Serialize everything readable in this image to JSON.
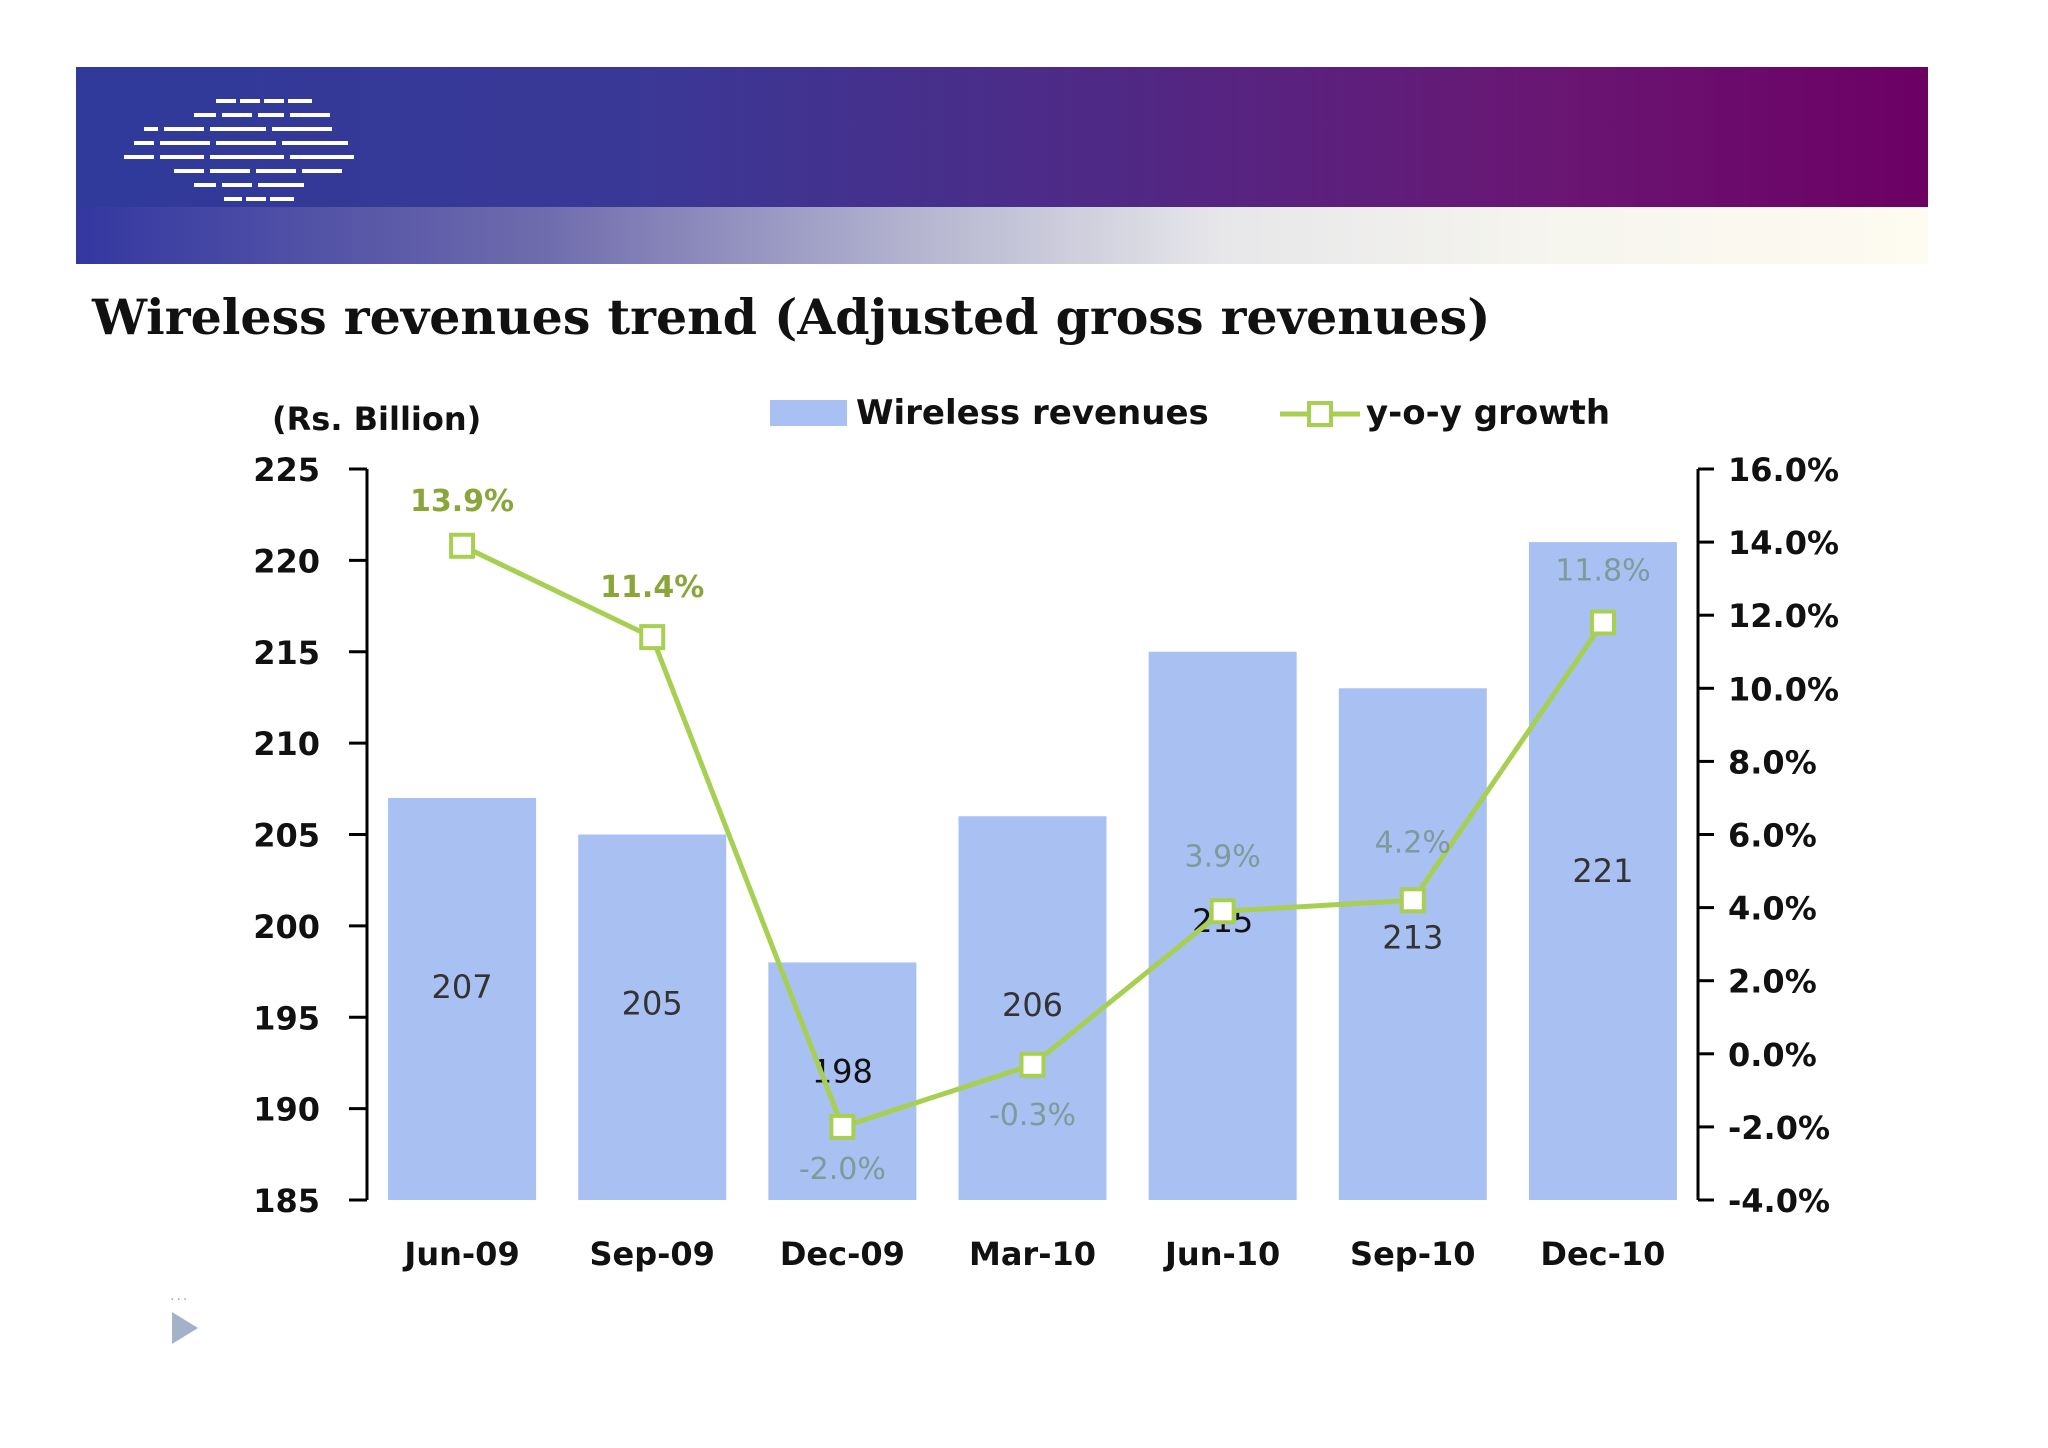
{
  "slide": {
    "title": "Wireless revenues trend (Adjusted gross revenues)",
    "logo_icon": "striped-company-logo-icon",
    "bullet_icon": "triangle-bullet-icon"
  },
  "colors": {
    "bar": "#a9c0f2",
    "line": "#a7cf52",
    "line_label": "#8aa53a",
    "axis": "#000000"
  },
  "chart_data": {
    "type": "bar",
    "title": "",
    "unit_label": "(Rs. Billion)",
    "categories": [
      "Jun-09",
      "Sep-09",
      "Dec-09",
      "Mar-10",
      "Jun-10",
      "Sep-10",
      "Dec-10"
    ],
    "series": [
      {
        "name": "Wireless revenues",
        "type": "bar",
        "axis": "left",
        "values": [
          207,
          205,
          198,
          206,
          215,
          213,
          221
        ],
        "labels": [
          "207",
          "205",
          "198",
          "206",
          "215",
          "213",
          "221"
        ]
      },
      {
        "name": "y-o-y growth",
        "type": "line",
        "axis": "right",
        "values": [
          13.9,
          11.4,
          -2.0,
          -0.3,
          3.9,
          4.2,
          11.8
        ],
        "labels": [
          "13.9%",
          "11.4%",
          "-2.0%",
          "-0.3%",
          "3.9%",
          "4.2%",
          "11.8%"
        ]
      }
    ],
    "y_left": {
      "min": 185,
      "max": 225,
      "ticks": [
        "185",
        "190",
        "195",
        "200",
        "205",
        "210",
        "215",
        "220",
        "225"
      ]
    },
    "y_right": {
      "min": -4,
      "max": 16,
      "ticks": [
        "-4.0%",
        "-2.0%",
        "0.0%",
        "2.0%",
        "4.0%",
        "6.0%",
        "8.0%",
        "10.0%",
        "12.0%",
        "14.0%",
        "16.0%"
      ]
    },
    "legend": "top",
    "grid": false
  }
}
